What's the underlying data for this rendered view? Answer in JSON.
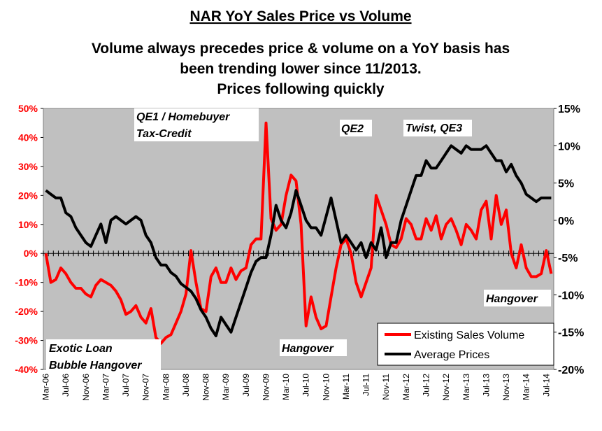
{
  "chart_data": {
    "type": "line",
    "title": "NAR YoY Sales Price vs Volume",
    "subtitle": [
      "Volume always precedes price & volume on a YoY basis has",
      "been trending lower since 11/2013.",
      "Prices following quickly"
    ],
    "categories": [
      "Mar-06",
      null,
      null,
      null,
      "Jul-06",
      null,
      null,
      null,
      "Nov-06",
      null,
      null,
      null,
      "Mar-07",
      null,
      null,
      null,
      "Jul-07",
      null,
      null,
      null,
      "Nov-07",
      null,
      null,
      null,
      "Mar-08",
      null,
      null,
      null,
      "Jul-08",
      null,
      null,
      null,
      "Nov-08",
      null,
      null,
      null,
      "Mar-09",
      null,
      null,
      null,
      "Jul-09",
      null,
      null,
      null,
      "Nov-09",
      null,
      null,
      null,
      "Mar-10",
      null,
      null,
      null,
      "Jul-10",
      null,
      null,
      null,
      "Nov-10",
      null,
      null,
      null,
      "Mar-11",
      null,
      null,
      null,
      "Jul-11",
      null,
      null,
      null,
      "Nov-11",
      null,
      null,
      null,
      "Mar-12",
      null,
      null,
      null,
      "Jul-12",
      null,
      null,
      null,
      "Nov-12",
      null,
      null,
      null,
      "Mar-13",
      null,
      null,
      null,
      "Jul-13",
      null,
      null,
      null,
      "Nov-13",
      null,
      null,
      null,
      "Mar-14",
      null,
      null,
      null,
      "Jul-14",
      null
    ],
    "series": [
      {
        "name": "Existing Sales Volume",
        "color": "#ff0000",
        "axis": "y",
        "values": [
          0,
          -10,
          -9,
          -5,
          -7,
          -10,
          -12,
          -12,
          -14,
          -15,
          -11,
          -9,
          -10,
          -11,
          -13,
          -16,
          -21,
          -20,
          -18,
          -22,
          -24,
          -19,
          -29,
          -31,
          -29,
          -28,
          -24,
          -20,
          -14,
          1,
          -10,
          -19,
          -20,
          -8,
          -5,
          -10,
          -10,
          -5,
          -9,
          -6,
          -5,
          3,
          5,
          5,
          45,
          12,
          8,
          10,
          20,
          27,
          25,
          10,
          -25,
          -15,
          -22,
          -26,
          -25,
          -15,
          -5,
          3,
          5,
          0,
          -10,
          -15,
          -10,
          -5,
          20,
          15,
          10,
          3,
          2,
          5,
          12,
          10,
          5,
          5,
          12,
          8,
          13,
          5,
          10,
          12,
          8,
          3,
          10,
          8,
          5,
          15,
          18,
          5,
          20,
          10,
          15,
          0,
          -5,
          3,
          -5,
          -8,
          -8,
          -7,
          1,
          -7
        ]
      },
      {
        "name": "Average Prices",
        "color": "#000000",
        "axis": "y2",
        "values": [
          4,
          3.5,
          3,
          3,
          1,
          0.5,
          -1,
          -2,
          -3,
          -3.5,
          -2,
          -0.5,
          -3,
          0,
          0.5,
          0,
          -0.5,
          0,
          0.5,
          0,
          -2,
          -3,
          -5,
          -6,
          -6,
          -7,
          -7.5,
          -8.5,
          -9,
          -9.5,
          -10.5,
          -12,
          -13,
          -14.5,
          -15.5,
          -13,
          -14,
          -15,
          -13,
          -11,
          -9,
          -7,
          -5.5,
          -5,
          -5,
          -2,
          2,
          0,
          -1,
          1,
          4,
          2,
          0,
          -1,
          -1,
          -2,
          0.5,
          3,
          0,
          -3,
          -2,
          -3,
          -4,
          -3,
          -5,
          -3,
          -4,
          -1,
          -5,
          -3,
          -3,
          0,
          2,
          4,
          6,
          6,
          8,
          7,
          7,
          8,
          9,
          10,
          9.5,
          9,
          10,
          9.5,
          9.5,
          9.5,
          10,
          9,
          8,
          8,
          6.5,
          7.5,
          6,
          5,
          3.5,
          3,
          2.5,
          3,
          3,
          3
        ]
      }
    ],
    "ylim": [
      -40,
      50
    ],
    "yticks": [
      {
        "value": -40,
        "label": "-40%"
      },
      {
        "value": -30,
        "label": "-30%"
      },
      {
        "value": -20,
        "label": "-20%"
      },
      {
        "value": -10,
        "label": "-10%"
      },
      {
        "value": 0,
        "label": "0%"
      },
      {
        "value": 10,
        "label": "10%"
      },
      {
        "value": 20,
        "label": "20%"
      },
      {
        "value": 30,
        "label": "30%"
      },
      {
        "value": 40,
        "label": "40%"
      },
      {
        "value": 50,
        "label": "50%"
      }
    ],
    "y2lim": [
      -20,
      15
    ],
    "y2ticks": [
      {
        "value": -20,
        "label": "-20%"
      },
      {
        "value": -15,
        "label": "-15%"
      },
      {
        "value": -10,
        "label": "-10%"
      },
      {
        "value": -5,
        "label": "-5%"
      },
      {
        "value": 0,
        "label": "0%"
      },
      {
        "value": 5,
        "label": "5%"
      },
      {
        "value": 10,
        "label": "10%"
      },
      {
        "value": 15,
        "label": "15%"
      }
    ],
    "legend": "lower right",
    "annotations": [
      "QE1 / Homebuyer",
      "Tax-Credit",
      "QE2",
      "Twist, QE3",
      "Hangover",
      "Hangover",
      "Exotic Loan",
      "Bubble Hangover"
    ]
  }
}
